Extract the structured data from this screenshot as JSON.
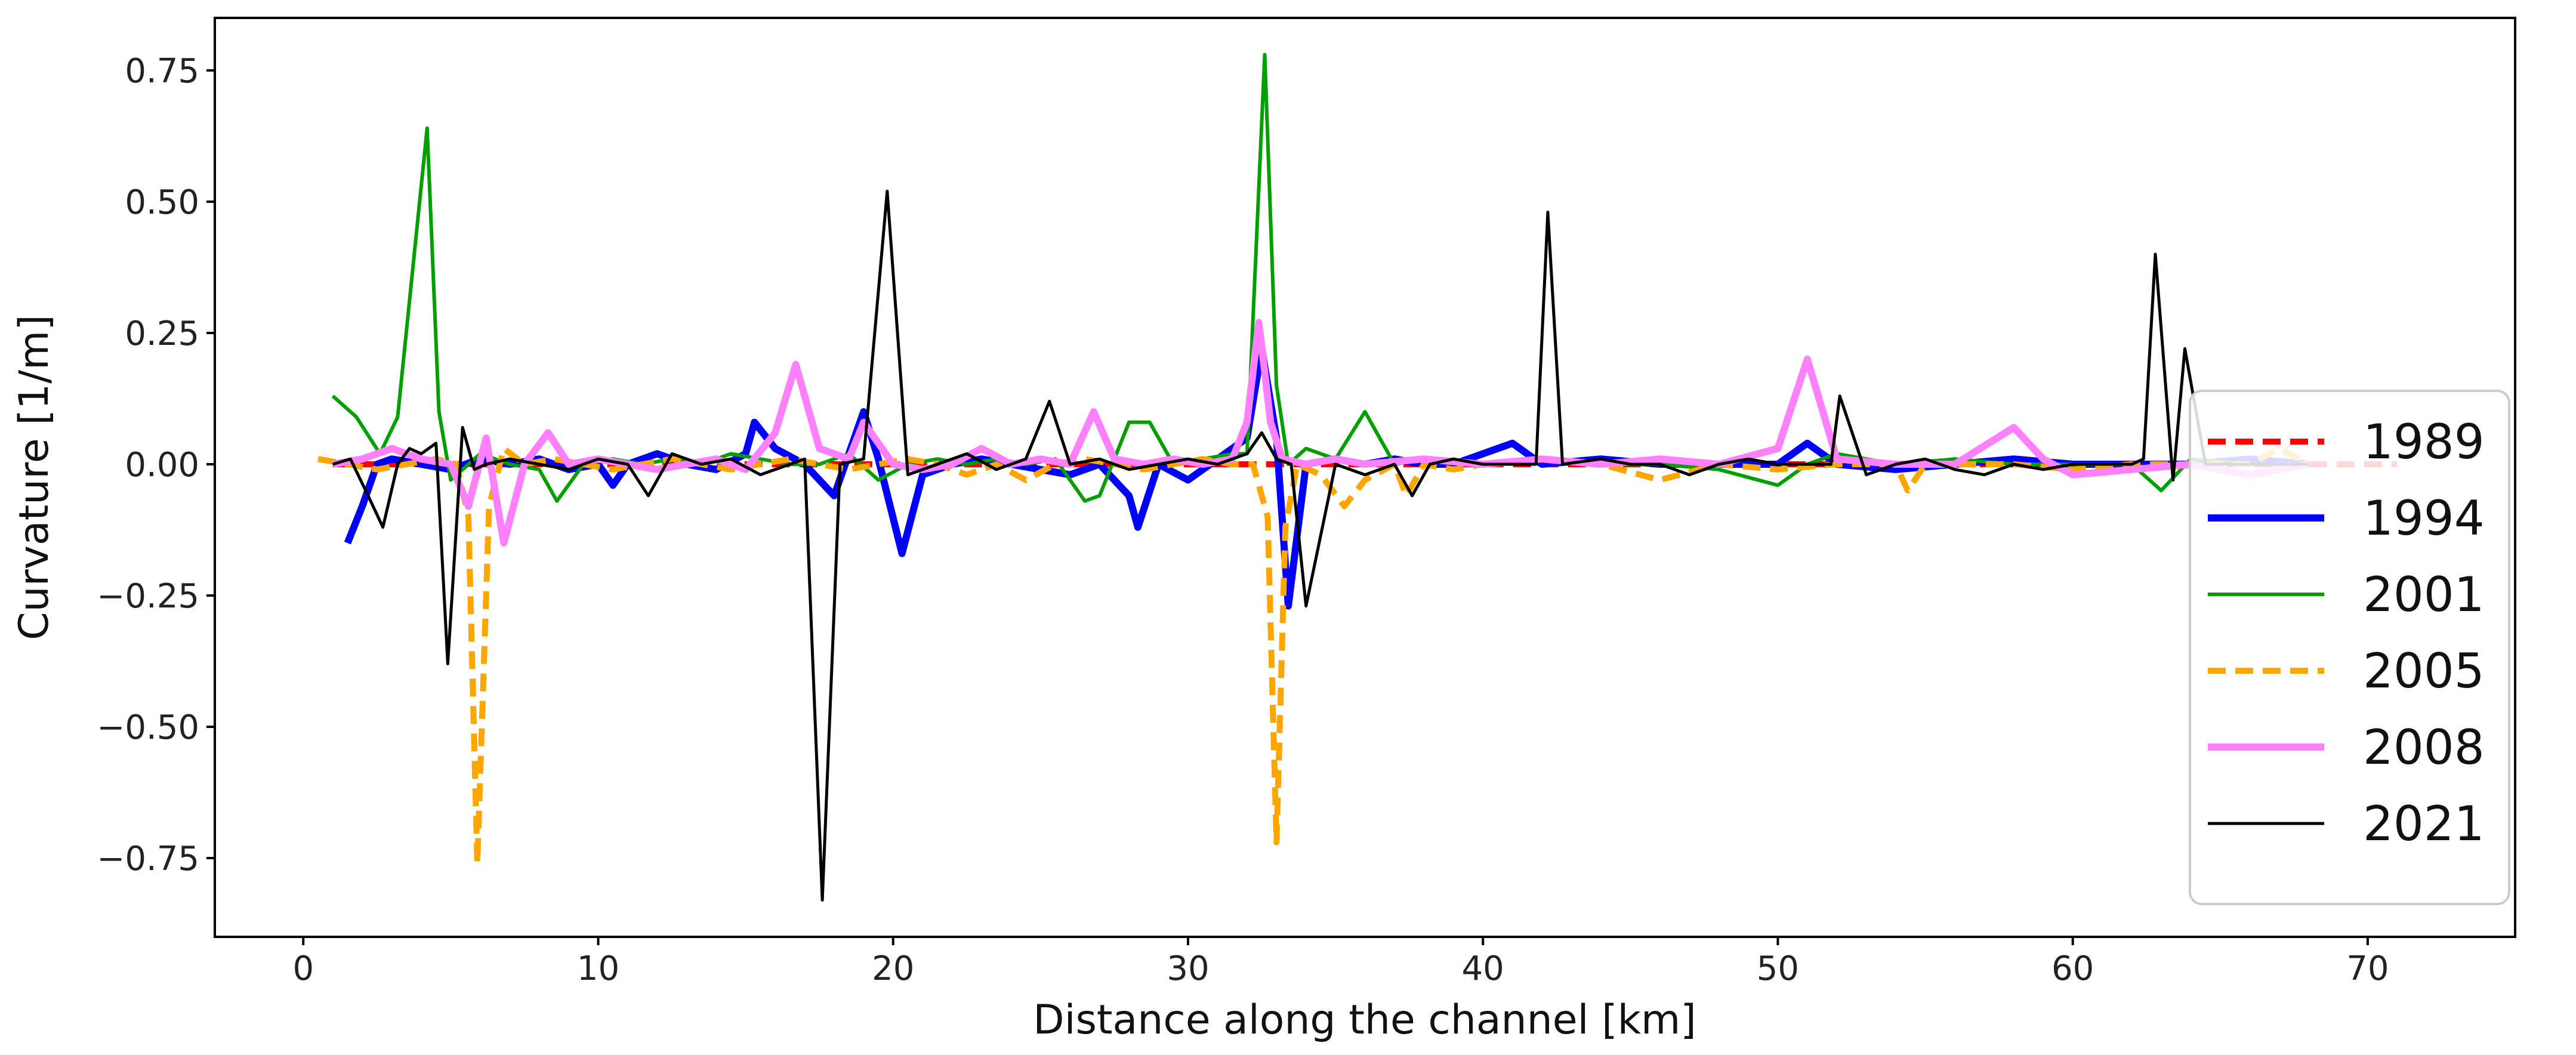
{
  "chart_data": {
    "type": "line",
    "title": "",
    "xlabel": "Distance along the channel [km]",
    "ylabel": "Curvature [1/m]",
    "xlim": [
      -3,
      75
    ],
    "ylim": [
      -0.9,
      0.85
    ],
    "xticks": [
      0,
      10,
      20,
      30,
      40,
      50,
      60,
      70
    ],
    "xtick_labels": [
      "0",
      "10",
      "20",
      "30",
      "40",
      "50",
      "60",
      "70"
    ],
    "yticks": [
      -0.75,
      -0.5,
      -0.25,
      0.0,
      0.25,
      0.5,
      0.75
    ],
    "ytick_labels": [
      "−0.75",
      "−0.50",
      "−0.25",
      "0.00",
      "0.25",
      "0.50",
      "0.75"
    ],
    "grid": false,
    "legend_position": "lower-right",
    "series": [
      {
        "name": "1989",
        "color": "#ff0000",
        "dash": "dashed",
        "width": 10,
        "x": [
          1,
          4,
          8,
          12,
          16,
          20,
          24,
          28,
          32,
          36,
          40,
          44,
          48,
          52,
          56,
          60,
          64,
          68,
          71
        ],
        "y": [
          0,
          0,
          0,
          0,
          0,
          0,
          0,
          0,
          0,
          0,
          0,
          0,
          0,
          0,
          0,
          0,
          0,
          0,
          0
        ]
      },
      {
        "name": "1994",
        "color": "#0000ff",
        "dash": "solid",
        "width": 12,
        "x": [
          1.5,
          2.0,
          2.5,
          3.0,
          4.0,
          5.0,
          6.0,
          7.0,
          8.0,
          9.0,
          10.0,
          10.5,
          11.0,
          12.0,
          13.0,
          14.0,
          15.0,
          15.3,
          16.0,
          17.0,
          17.5,
          18.0,
          18.5,
          19.0,
          19.5,
          20.3,
          21.0,
          22.0,
          23.0,
          24.0,
          25.0,
          26.0,
          27.0,
          28.0,
          28.3,
          29.0,
          30.0,
          31.0,
          32.0,
          32.5,
          33.0,
          33.4,
          34.0,
          35.0,
          36.0,
          37.0,
          38.0,
          39.0,
          40.0,
          41.0,
          42.0,
          44.0,
          46.0,
          48.0,
          50.0,
          51.0,
          52.0,
          54.0,
          56.0,
          58.0,
          60.0,
          62.0,
          64.0,
          66.0,
          68.0
        ],
        "y": [
          -0.15,
          -0.08,
          0.0,
          0.01,
          0.0,
          -0.01,
          0.01,
          0.0,
          0.01,
          -0.01,
          0.0,
          -0.04,
          0.0,
          0.02,
          0.0,
          -0.01,
          0.02,
          0.08,
          0.03,
          0.0,
          -0.03,
          -0.06,
          0.02,
          0.1,
          0.01,
          -0.17,
          -0.02,
          0.0,
          0.01,
          0.0,
          -0.01,
          -0.02,
          0.0,
          -0.06,
          -0.12,
          0.0,
          -0.03,
          0.01,
          0.05,
          0.22,
          0.05,
          -0.27,
          0.0,
          0.01,
          0.0,
          0.01,
          0.0,
          0.0,
          0.02,
          0.04,
          0.0,
          0.01,
          0.0,
          0.0,
          0.0,
          0.04,
          0.0,
          -0.01,
          0.0,
          0.01,
          0.0,
          0.0,
          0.0,
          0.01,
          0.0
        ]
      },
      {
        "name": "2001",
        "color": "#00a000",
        "dash": "solid",
        "width": 6,
        "x": [
          1.0,
          1.8,
          2.6,
          3.2,
          4.2,
          4.6,
          5.0,
          6.0,
          7.0,
          8.0,
          8.6,
          9.5,
          10.5,
          11.5,
          12.5,
          13.5,
          14.5,
          15.5,
          16.5,
          17.5,
          18.5,
          19.5,
          20.5,
          21.5,
          22.5,
          23.5,
          24.5,
          25.5,
          26.5,
          27.0,
          28.0,
          28.7,
          29.5,
          30.5,
          31.5,
          32.0,
          32.6,
          33.0,
          33.4,
          34.0,
          35.0,
          36.0,
          37.0,
          38.0,
          40.0,
          42.0,
          44.0,
          46.0,
          48.0,
          50.0,
          51.0,
          52.0,
          54.0,
          56.0,
          58.0,
          60.0,
          62.0,
          63.0,
          64.0,
          66.0,
          68.0
        ],
        "y": [
          0.13,
          0.09,
          0.02,
          0.09,
          0.64,
          0.1,
          -0.03,
          0.02,
          0.0,
          -0.01,
          -0.07,
          0.0,
          0.01,
          0.0,
          0.01,
          0.0,
          0.02,
          0.01,
          0.0,
          0.0,
          0.02,
          -0.03,
          0.0,
          0.01,
          0.0,
          0.01,
          0.0,
          0.01,
          -0.07,
          -0.06,
          0.08,
          0.08,
          0.0,
          0.01,
          0.02,
          0.02,
          0.78,
          0.15,
          0.0,
          0.03,
          0.01,
          0.1,
          0.0,
          0.01,
          0.0,
          0.01,
          0.0,
          0.0,
          -0.01,
          -0.04,
          0.0,
          0.02,
          0.0,
          0.01,
          0.0,
          0.0,
          0.0,
          -0.05,
          0.01,
          0.0,
          0.0
        ]
      },
      {
        "name": "2005",
        "color": "#ffa500",
        "dash": "dashed",
        "width": 10,
        "x": [
          0.5,
          1.5,
          2.5,
          3.5,
          4.5,
          5.2,
          5.6,
          5.9,
          6.3,
          6.8,
          7.5,
          8.5,
          9.5,
          10.5,
          11.5,
          12.5,
          13.5,
          14.5,
          15.5,
          16.5,
          17.5,
          18.5,
          19.5,
          20.5,
          21.5,
          22.5,
          23.5,
          24.5,
          25.5,
          26.5,
          27.5,
          28.5,
          29.5,
          30.5,
          31.5,
          32.2,
          32.7,
          33.0,
          33.3,
          33.7,
          34.5,
          35.3,
          36.0,
          37.0,
          37.4,
          38.0,
          39.0,
          40.0,
          42.0,
          44.0,
          46.0,
          48.0,
          50.0,
          52.0,
          54.0,
          54.4,
          55.0,
          56.0,
          58.0,
          60.0,
          62.0,
          64.0,
          66.0,
          67.0,
          68.0
        ],
        "y": [
          0.01,
          0.0,
          -0.01,
          0.0,
          0.01,
          0.0,
          -0.1,
          -0.76,
          -0.08,
          0.03,
          0.0,
          0.01,
          0.0,
          -0.01,
          0.0,
          0.01,
          0.0,
          -0.01,
          0.0,
          0.01,
          0.0,
          -0.01,
          0.0,
          0.01,
          0.0,
          -0.02,
          0.0,
          -0.03,
          0.0,
          0.01,
          0.0,
          -0.01,
          0.0,
          0.01,
          0.0,
          0.0,
          -0.1,
          -0.72,
          -0.12,
          0.0,
          -0.02,
          -0.08,
          -0.03,
          0.0,
          -0.06,
          0.0,
          -0.01,
          0.0,
          0.01,
          0.0,
          -0.03,
          0.0,
          -0.01,
          0.0,
          0.0,
          -0.05,
          0.0,
          0.0,
          0.0,
          -0.01,
          0.0,
          0.0,
          0.0,
          0.03,
          0.0
        ]
      },
      {
        "name": "2008",
        "color": "#ff80ff",
        "dash": "solid",
        "width": 12,
        "x": [
          1.0,
          2.0,
          3.0,
          4.0,
          5.0,
          5.6,
          6.2,
          6.8,
          7.5,
          8.3,
          9.0,
          10.0,
          11.0,
          12.0,
          13.0,
          14.0,
          15.0,
          16.0,
          16.7,
          17.5,
          18.5,
          19.0,
          20.0,
          21.0,
          22.0,
          23.0,
          24.0,
          25.0,
          26.0,
          26.8,
          27.5,
          28.5,
          29.5,
          30.5,
          31.5,
          32.0,
          32.4,
          32.8,
          33.2,
          34.0,
          35.0,
          36.0,
          38.0,
          40.0,
          42.0,
          44.0,
          46.0,
          48.0,
          50.0,
          51.0,
          52.0,
          54.0,
          56.0,
          58.0,
          59.0,
          60.0,
          62.0,
          64.0,
          66.0,
          68.0
        ],
        "y": [
          0.0,
          0.01,
          0.03,
          0.01,
          0.0,
          -0.08,
          0.05,
          -0.15,
          0.0,
          0.06,
          0.0,
          0.01,
          0.0,
          -0.01,
          0.0,
          0.01,
          -0.01,
          0.06,
          0.19,
          0.03,
          0.01,
          0.08,
          0.0,
          -0.01,
          0.0,
          0.03,
          0.0,
          0.01,
          0.0,
          0.1,
          0.01,
          0.0,
          0.01,
          0.0,
          0.01,
          0.08,
          0.27,
          0.08,
          0.01,
          0.0,
          0.01,
          0.0,
          0.01,
          0.0,
          0.01,
          0.0,
          0.01,
          0.0,
          0.03,
          0.2,
          0.01,
          0.0,
          0.0,
          0.07,
          0.01,
          -0.02,
          -0.01,
          0.0,
          -0.02,
          0.0
        ]
      },
      {
        "name": "2021",
        "color": "#000000",
        "dash": "solid",
        "width": 5,
        "x": [
          1.0,
          1.6,
          2.2,
          2.7,
          3.2,
          3.6,
          4.0,
          4.5,
          4.9,
          5.4,
          5.8,
          6.2,
          7.0,
          8.0,
          9.0,
          10.0,
          11.0,
          11.7,
          12.5,
          13.5,
          14.5,
          15.5,
          16.5,
          17.0,
          17.6,
          18.2,
          19.0,
          19.8,
          20.5,
          21.5,
          22.5,
          23.5,
          24.5,
          25.3,
          26.0,
          27.0,
          28.0,
          29.0,
          30.0,
          31.0,
          32.0,
          32.5,
          33.0,
          33.5,
          34.0,
          35.0,
          36.0,
          37.0,
          37.6,
          38.2,
          39.0,
          40.0,
          41.0,
          41.8,
          42.2,
          42.7,
          44.0,
          45.0,
          46.0,
          47.0,
          48.0,
          49.0,
          50.0,
          51.0,
          51.8,
          52.1,
          53.0,
          54.0,
          55.0,
          56.0,
          57.0,
          58.0,
          59.0,
          60.0,
          61.0,
          62.0,
          62.4,
          62.8,
          63.4,
          63.8,
          64.5,
          66.0,
          68.0
        ],
        "y": [
          0.0,
          0.01,
          -0.06,
          -0.12,
          0.0,
          0.03,
          0.02,
          0.04,
          -0.38,
          0.07,
          -0.01,
          0.0,
          0.01,
          0.0,
          -0.01,
          0.01,
          0.0,
          -0.06,
          0.02,
          0.0,
          0.01,
          -0.02,
          0.0,
          0.01,
          -0.83,
          0.0,
          0.01,
          0.52,
          -0.02,
          0.0,
          0.02,
          -0.01,
          0.01,
          0.12,
          0.0,
          0.01,
          -0.01,
          0.0,
          0.01,
          0.0,
          0.02,
          0.06,
          0.01,
          0.0,
          -0.27,
          0.0,
          -0.02,
          0.0,
          -0.06,
          0.0,
          0.01,
          0.0,
          0.0,
          0.0,
          0.48,
          0.0,
          0.01,
          0.0,
          0.0,
          -0.02,
          0.0,
          0.01,
          0.0,
          0.0,
          0.0,
          0.13,
          -0.02,
          0.0,
          0.01,
          -0.01,
          -0.02,
          0.0,
          -0.01,
          0.0,
          0.0,
          0.0,
          0.01,
          0.4,
          -0.03,
          0.22,
          0.0,
          0.0,
          0.0
        ]
      }
    ]
  }
}
